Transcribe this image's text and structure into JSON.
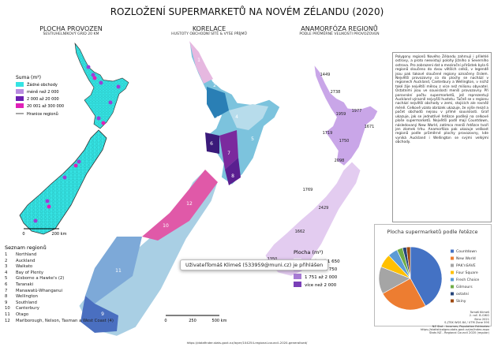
{
  "title": "ROZLOŽENÍ SUPERMARKETŮ NA NOVÉM ZÉLANDU (2020)",
  "maps": [
    {
      "title": "PLOCHA PROVOZEN",
      "subtitle": "ŠESTIÚHELNÍKOVÝ GRID 20 KM"
    },
    {
      "title": "KORELACE",
      "subtitle": "HUSTOTY OBCHODNÍ SÍTĚ & VÝŠE PŘÍJMŮ"
    },
    {
      "title": "ANAMORFÓZA REGIONŮ",
      "subtitle": "PODLE PRŮMĚRNÉ VELIKOSTI PROVOZOVEN"
    }
  ],
  "hex_legend": {
    "title": "Suma (m²)",
    "items": [
      "Žádné obchody",
      "méně než 2 000",
      "2 000 až 20 000",
      "20 001 až 300 000"
    ],
    "boundary": "Hranice regionů"
  },
  "scale_left": [
    "0",
    "200 km"
  ],
  "regions": {
    "title": "Seznam regionů",
    "items": [
      {
        "num": "1",
        "name": "Northland"
      },
      {
        "num": "2",
        "name": "Auckland"
      },
      {
        "num": "3",
        "name": "Waikato"
      },
      {
        "num": "4",
        "name": "Bay of Plenty"
      },
      {
        "num": "5",
        "name": "Gisborne a Hawke's (2)"
      },
      {
        "num": "6",
        "name": "Taranaki"
      },
      {
        "num": "7",
        "name": "Manawatū-Whanganui"
      },
      {
        "num": "8",
        "name": "Wellington"
      },
      {
        "num": "9",
        "name": "Southland"
      },
      {
        "num": "10",
        "name": "Canterbury"
      },
      {
        "num": "11",
        "name": "Otago"
      },
      {
        "num": "12",
        "name": "Marlborough, Nelson, Tasman a West Coast (4)"
      }
    ]
  },
  "map_labels": [
    "1",
    "2",
    "3",
    "4",
    "5",
    "6",
    "7",
    "8",
    "9",
    "10",
    "11",
    "12"
  ],
  "cartogram_values": [
    "1449",
    "2738",
    "1959",
    "1977",
    "1671",
    "1719",
    "1750",
    "2098",
    "1769",
    "2429",
    "1662",
    "1350"
  ],
  "area_legend": {
    "title": "Plocha (m²)",
    "items": [
      "méně než 1 650",
      "1 650 až 1 750",
      "1 751 až 2 000",
      "více než 2 000"
    ]
  },
  "scale_mid": [
    "0",
    "250",
    "500 km"
  ],
  "tooltip": "UživatelTomáš Klimeš (533959@muni.cz) je přihlášen",
  "description": "Polygony regionů Nového Zélandu zahrnují i přilehlé ostrovy, a proto neexistují polohy Jižního a Severního ostrova. Pro zobrazení dat a meziroční přírůstek byla 6 regionů sloučeno do dvou větších celků, v legendě jsou pak takové sloučené regiony označeny číslem. Největší provozovny co do plochy se nachází v regionech Auckland, Canterbury a Wellington, v nichž také žije největší měrou z více než milionu obyvatel. Ostatními jsou ve souvislosti menší provozovny. Při porovnání počtu supermarketů, jež reprezentují Auckland výrazně nejvyšší hustotu. Tučně se v regionu nachází největší obchody v zemi, stojících ale rovněž méně. Celkově vzato obrázek ukazuje, že výše mezd a počet obchodů nejsou v přímé souvislosti. Graf ukazuje, jak se jednotlivé řetězce podílejí na celkové ploše supermarketů. Největší podíl mají Countdown, následovaný New World, zatímco menší řetězce tvoří jen zlomek trhu. Anamorfóza pak ukazuje velikost regionů podle průměrné plochy provozovny, kde vyniká Auckland i Wellington se svými velkými obchody.",
  "chart_data": {
    "type": "pie",
    "title": "Plocha supermarketů podle řetězce",
    "categories": [
      "Countdown",
      "New World",
      "PAK'nSAVE",
      "Four Square",
      "Fresh Choice",
      "Gilmours",
      "ostatní",
      "Skiny"
    ],
    "values": [
      42,
      25,
      14,
      7,
      5,
      3,
      2,
      2
    ],
    "colors": [
      "#4472c4",
      "#ed7d31",
      "#a5a5a5",
      "#ffc000",
      "#5b9bd5",
      "#70ad47",
      "#264478",
      "#9e480e"
    ],
    "legend": "right"
  },
  "credits": [
    "Tomáš Klimeš",
    "2. roč. B-GIKG",
    "Brno 2021",
    "S-JTSK WGS 84 / UTM Zone 59S",
    "NZ Stat - Incomes, Population Estimates",
    "https://statisticalgeo.stats.govt.nz/ze/index.aspx",
    "Stats NZ - Regional Council 2020 (regular)"
  ],
  "source": "https://datafinder.stats.govt.nz/layer/104254-regional-council-2020-generalised/"
}
